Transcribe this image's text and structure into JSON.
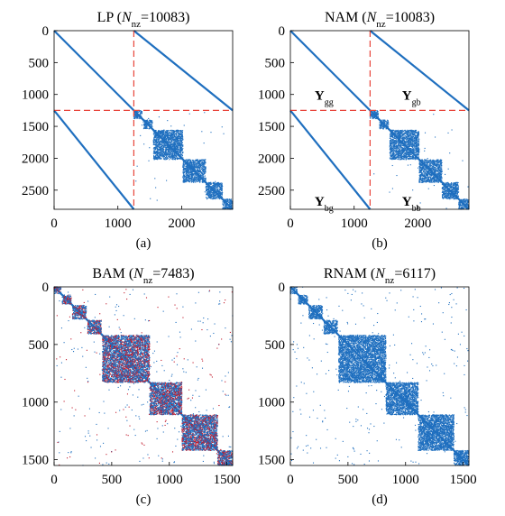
{
  "chart_data": [
    {
      "type": "heatmap",
      "subtype": "sparsity-pattern",
      "title_main": "LP",
      "title_sub": "nz",
      "title_value": "=10083",
      "caption": "(a)",
      "n": 2800,
      "xlim": [
        0,
        2800
      ],
      "ylim": [
        0,
        2800
      ],
      "xticks": [
        0,
        1000,
        2000
      ],
      "xtick_labels": [
        "0",
        "1000",
        "2000"
      ],
      "yticks": [
        0,
        500,
        1000,
        1500,
        2000,
        2500
      ],
      "ytick_labels": [
        "0",
        "500",
        "1000",
        "1500",
        "2000",
        "2500"
      ],
      "partition": 1250,
      "partition_lines": true,
      "line_color": "#e8443a",
      "point_color": "#1f6fbf",
      "block_labels": [],
      "diagonal_bands": [
        {
          "x0": 0,
          "y0": 0,
          "x1": 2800,
          "y1": 2800
        },
        {
          "x0": 1250,
          "y0": 0,
          "x1": 2800,
          "y1": 1250
        },
        {
          "x0": 0,
          "y0": 1250,
          "x1": 1250,
          "y1": 2800
        }
      ],
      "dense_blocks": [
        {
          "start": 1250,
          "end": 1380
        },
        {
          "start": 1400,
          "end": 1540
        },
        {
          "start": 1560,
          "end": 2020
        },
        {
          "start": 2020,
          "end": 2380
        },
        {
          "start": 2380,
          "end": 2640
        },
        {
          "start": 2640,
          "end": 2800
        }
      ],
      "scatter_region": [
        1250,
        2800
      ],
      "scatter_density": 0.00018
    },
    {
      "type": "heatmap",
      "subtype": "sparsity-pattern",
      "title_main": "NAM",
      "title_sub": "nz",
      "title_value": "=10083",
      "caption": "(b)",
      "n": 2800,
      "xlim": [
        0,
        2800
      ],
      "ylim": [
        0,
        2800
      ],
      "xticks": [
        0,
        1000,
        2000
      ],
      "xtick_labels": [
        "0",
        "1000",
        "2000"
      ],
      "yticks": [
        0,
        500,
        1000,
        1500,
        2000,
        2500
      ],
      "ytick_labels": [
        "0",
        "500",
        "1000",
        "1500",
        "2000",
        "2500"
      ],
      "partition": 1250,
      "partition_lines": true,
      "line_color": "#e8443a",
      "point_color": "#1f6fbf",
      "block_labels": [
        {
          "main": "Y",
          "sub": "gg",
          "x": 380,
          "y": 1080
        },
        {
          "main": "Y",
          "sub": "gb",
          "x": 1750,
          "y": 1080
        },
        {
          "main": "Y",
          "sub": "bg",
          "x": 380,
          "y": 2740
        },
        {
          "main": "Y",
          "sub": "bb",
          "x": 1750,
          "y": 2740
        }
      ],
      "diagonal_bands": [
        {
          "x0": 0,
          "y0": 0,
          "x1": 2800,
          "y1": 2800
        },
        {
          "x0": 1250,
          "y0": 0,
          "x1": 2800,
          "y1": 1250
        },
        {
          "x0": 0,
          "y0": 1250,
          "x1": 1250,
          "y1": 2800
        }
      ],
      "dense_blocks": [
        {
          "start": 1250,
          "end": 1380
        },
        {
          "start": 1400,
          "end": 1540
        },
        {
          "start": 1560,
          "end": 2020
        },
        {
          "start": 2020,
          "end": 2380
        },
        {
          "start": 2380,
          "end": 2640
        },
        {
          "start": 2640,
          "end": 2800
        }
      ],
      "scatter_region": [
        1250,
        2800
      ],
      "scatter_density": 0.00018
    },
    {
      "type": "heatmap",
      "subtype": "sparsity-pattern",
      "title_main": "BAM",
      "title_sub": "nz",
      "title_value": "=7483",
      "caption": "(c)",
      "n": 1550,
      "xlim": [
        0,
        1550
      ],
      "ylim": [
        0,
        1550
      ],
      "xticks": [
        0,
        500,
        1000,
        1500
      ],
      "xtick_labels": [
        "0",
        "500",
        "1000",
        "1500"
      ],
      "yticks": [
        0,
        500,
        1000,
        1500
      ],
      "ytick_labels": [
        "0",
        "500",
        "1000",
        "1500"
      ],
      "partition_lines": false,
      "point_color": "#1f6fbf",
      "accent_color": "#c0182a",
      "block_labels": [],
      "diagonal_bands": [
        {
          "x0": 0,
          "y0": 0,
          "x1": 1550,
          "y1": 1550
        }
      ],
      "dense_blocks": [
        {
          "start": 0,
          "end": 60
        },
        {
          "start": 70,
          "end": 150
        },
        {
          "start": 160,
          "end": 280
        },
        {
          "start": 290,
          "end": 410
        },
        {
          "start": 420,
          "end": 830
        },
        {
          "start": 830,
          "end": 1110
        },
        {
          "start": 1110,
          "end": 1420
        },
        {
          "start": 1420,
          "end": 1550
        }
      ],
      "scatter_region": [
        0,
        1550
      ],
      "scatter_density": 0.00055,
      "accent_fraction": 0.35
    },
    {
      "type": "heatmap",
      "subtype": "sparsity-pattern",
      "title_main": "RNAM",
      "title_sub": "nz",
      "title_value": "=6117",
      "caption": "(d)",
      "n": 1550,
      "xlim": [
        0,
        1550
      ],
      "ylim": [
        0,
        1550
      ],
      "xticks": [
        0,
        500,
        1000,
        1500
      ],
      "xtick_labels": [
        "0",
        "500",
        "1000",
        "1500"
      ],
      "yticks": [
        0,
        500,
        1000,
        1500
      ],
      "ytick_labels": [
        "0",
        "500",
        "1000",
        "1500"
      ],
      "partition_lines": false,
      "point_color": "#1f6fbf",
      "block_labels": [],
      "diagonal_bands": [
        {
          "x0": 0,
          "y0": 0,
          "x1": 1550,
          "y1": 1550
        }
      ],
      "dense_blocks": [
        {
          "start": 0,
          "end": 60
        },
        {
          "start": 70,
          "end": 150
        },
        {
          "start": 160,
          "end": 280
        },
        {
          "start": 290,
          "end": 410
        },
        {
          "start": 420,
          "end": 830
        },
        {
          "start": 830,
          "end": 1110
        },
        {
          "start": 1110,
          "end": 1420
        },
        {
          "start": 1420,
          "end": 1550
        }
      ],
      "scatter_region": [
        0,
        1550
      ],
      "scatter_density": 0.00045
    }
  ]
}
